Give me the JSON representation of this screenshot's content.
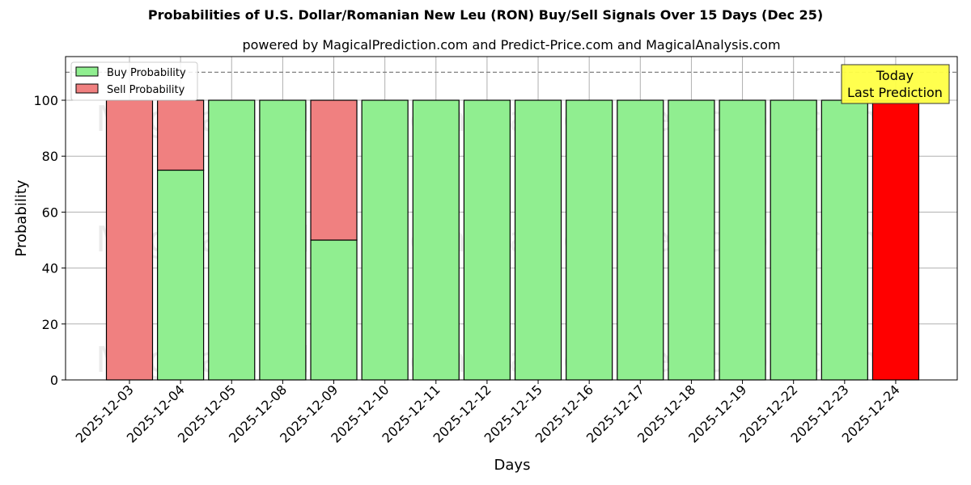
{
  "chart_data": {
    "type": "bar",
    "stacked": true,
    "title": "Probabilities of U.S. Dollar/Romanian New Leu (RON) Buy/Sell Signals Over 15 Days (Dec 25)",
    "subtitle": "powered by MagicalPrediction.com and Predict-Price.com and MagicalAnalysis.com",
    "xlabel": "Days",
    "ylabel": "Probability",
    "ylim": [
      0,
      115
    ],
    "yticks": [
      0,
      20,
      40,
      60,
      80,
      100
    ],
    "grid": true,
    "legend_position": "upper left",
    "reference_line": {
      "y": 110,
      "style": "dashed",
      "color": "#808080"
    },
    "categories": [
      "2025-12-03",
      "2025-12-04",
      "2025-12-05",
      "2025-12-08",
      "2025-12-09",
      "2025-12-10",
      "2025-12-11",
      "2025-12-12",
      "2025-12-15",
      "2025-12-16",
      "2025-12-17",
      "2025-12-18",
      "2025-12-19",
      "2025-12-22",
      "2025-12-23",
      "2025-12-24"
    ],
    "series": [
      {
        "name": "Buy Probability",
        "color": "#90ee90",
        "values": [
          0,
          75,
          100,
          100,
          50,
          100,
          100,
          100,
          100,
          100,
          100,
          100,
          100,
          100,
          100,
          0
        ]
      },
      {
        "name": "Sell Probability",
        "color": "#f08080",
        "values": [
          100,
          25,
          0,
          0,
          50,
          0,
          0,
          0,
          0,
          0,
          0,
          0,
          0,
          0,
          0,
          100
        ]
      }
    ],
    "highlight": {
      "category": "2025-12-24",
      "color": "#ff0000",
      "annotation": "Today\nLast Prediction",
      "annotation_bg": "#ffff44"
    },
    "watermarks": [
      "MagicalAnalysis.com",
      "MagicalPrediction.com"
    ]
  },
  "annotation": {
    "line1": "Today",
    "line2": "Last Prediction"
  },
  "legend": {
    "buy": "Buy Probability",
    "sell": "Sell Probability"
  }
}
